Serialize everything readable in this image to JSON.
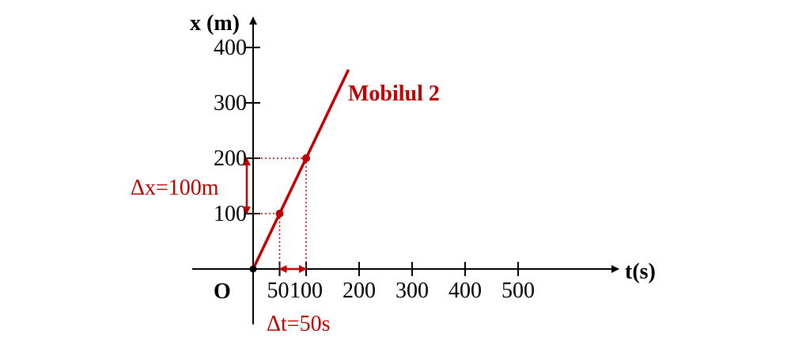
{
  "colors": {
    "series": "#c00000",
    "axis": "#000000"
  },
  "chart_data": {
    "type": "line",
    "title": "",
    "xlabel": "t(s)",
    "ylabel": "x (m)",
    "origin_label": "O",
    "x_ticks": [
      50,
      100,
      200,
      300,
      400,
      500
    ],
    "y_ticks": [
      100,
      200,
      300,
      400
    ],
    "series": [
      {
        "name": "Mobilul 2",
        "x": [
          0,
          180
        ],
        "y": [
          0,
          360
        ]
      }
    ],
    "marked_points": [
      {
        "x": 0,
        "y": 0
      },
      {
        "x": 50,
        "y": 100
      },
      {
        "x": 100,
        "y": 200
      }
    ],
    "annotations": {
      "delta_x": "Δx=100m",
      "delta_t": "Δt=50s"
    }
  }
}
